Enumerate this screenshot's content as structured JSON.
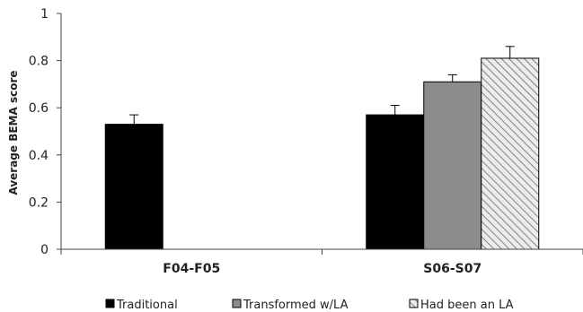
{
  "chart_data": {
    "type": "bar",
    "categories": [
      "F04-F05",
      "S06-S07"
    ],
    "series": [
      {
        "name": "Traditional",
        "values": [
          0.53,
          0.57
        ],
        "errors": [
          0.04,
          0.04
        ],
        "color": "#000000",
        "pattern": "solid"
      },
      {
        "name": "Transformed w/LA",
        "values": [
          null,
          0.71
        ],
        "errors": [
          null,
          0.03
        ],
        "color": "#8c8c8c",
        "pattern": "solid"
      },
      {
        "name": "Had been an LA",
        "values": [
          null,
          0.81
        ],
        "errors": [
          null,
          0.05
        ],
        "color": "#e6e6e6",
        "pattern": "diagonal-hatch"
      }
    ],
    "ylabel": "Average BEMA score",
    "xlabel": "",
    "ylim": [
      0,
      1
    ],
    "yticks": [
      "0",
      "0.2",
      "0.4",
      "0.6",
      "0.8",
      "1"
    ],
    "grid": false,
    "legend_position": "bottom"
  }
}
